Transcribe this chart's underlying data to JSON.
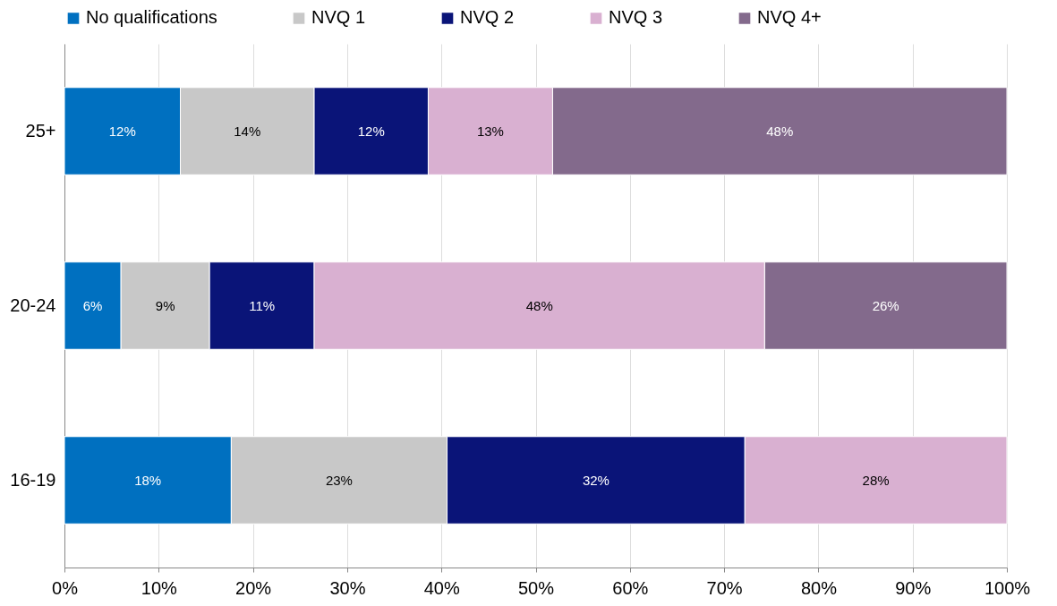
{
  "chart_data": {
    "type": "bar",
    "orientation": "horizontal",
    "stacked": true,
    "categories": [
      "25+",
      "20-24",
      "16-19"
    ],
    "series": [
      {
        "name": "No qualifications",
        "color": "#0070c0",
        "values": [
          12.3,
          6.0,
          17.7
        ],
        "value_labels": [
          "12%",
          "6%",
          "18%"
        ]
      },
      {
        "name": "NVQ 1",
        "color": "#c8c8c8",
        "values": [
          14.2,
          9.4,
          22.9
        ],
        "value_labels": [
          "14%",
          "9%",
          "23%"
        ]
      },
      {
        "name": "NVQ 2",
        "color": "#0a1478",
        "values": [
          12.1,
          11.1,
          31.6
        ],
        "value_labels": [
          "12%",
          "11%",
          "32%"
        ]
      },
      {
        "name": "NVQ 3",
        "color": "#d9b0d1",
        "values": [
          13.2,
          47.8,
          27.8
        ],
        "value_labels": [
          "13%",
          "48%",
          "28%"
        ]
      },
      {
        "name": "NVQ 4+",
        "color": "#836a8c",
        "values": [
          48.2,
          25.7,
          null
        ],
        "value_labels": [
          "48%",
          "26%",
          null
        ]
      }
    ],
    "xlim": [
      0,
      100
    ],
    "xticks": [
      {
        "value": 0,
        "label": "0%"
      },
      {
        "value": 10,
        "label": "10%"
      },
      {
        "value": 20,
        "label": "20%"
      },
      {
        "value": 30,
        "label": "30%"
      },
      {
        "value": 40,
        "label": "40%"
      },
      {
        "value": 50,
        "label": "50%"
      },
      {
        "value": 60,
        "label": "60%"
      },
      {
        "value": 70,
        "label": "70%"
      },
      {
        "value": 80,
        "label": "80%"
      },
      {
        "value": 90,
        "label": "90%"
      },
      {
        "value": 100,
        "label": "100%"
      }
    ],
    "grid": "x",
    "legend": "top"
  }
}
